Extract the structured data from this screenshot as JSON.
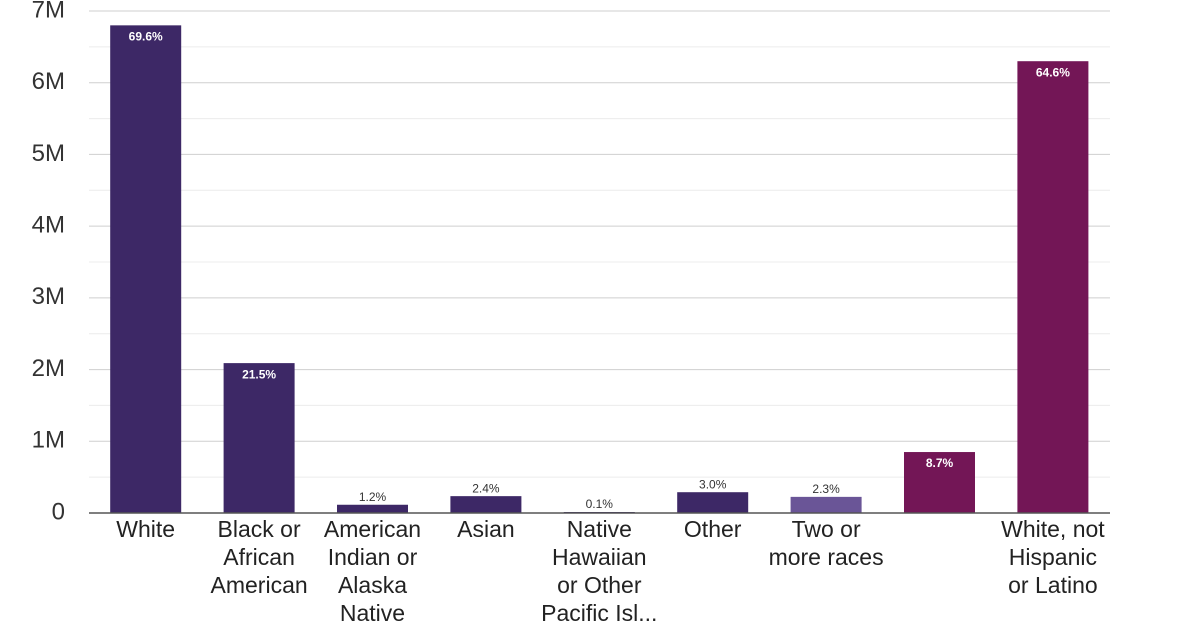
{
  "chart_data": {
    "type": "bar",
    "categories": [
      [
        "White"
      ],
      [
        "Black or",
        "African",
        "American"
      ],
      [
        "American",
        "Indian or",
        "Alaska",
        "Native"
      ],
      [
        "Asian"
      ],
      [
        "Native",
        "Hawaiian",
        "or Other",
        "Pacific Isl..."
      ],
      [
        "Other"
      ],
      [
        "Two or",
        "more races"
      ],
      [],
      [
        "White, not",
        "Hispanic",
        "or Latino"
      ]
    ],
    "values": [
      6800000,
      2090000,
      115000,
      235000,
      10000,
      290000,
      225000,
      850000,
      6300000
    ],
    "data_labels": [
      "69.6%",
      "21.5%",
      "1.2%",
      "2.4%",
      "0.1%",
      "3.0%",
      "2.3%",
      "8.7%",
      "64.6%"
    ],
    "colors": [
      "#3d2866",
      "#3d2866",
      "#3d2866",
      "#3d2866",
      "#3d2866",
      "#3d2866",
      "#6a5597",
      "#731656",
      "#731656"
    ],
    "y_ticks": [
      {
        "value": 0,
        "label": "0"
      },
      {
        "value": 1000000,
        "label": "1M"
      },
      {
        "value": 2000000,
        "label": "2M"
      },
      {
        "value": 3000000,
        "label": "3M"
      },
      {
        "value": 4000000,
        "label": "4M"
      },
      {
        "value": 5000000,
        "label": "5M"
      },
      {
        "value": 6000000,
        "label": "6M"
      },
      {
        "value": 7000000,
        "label": "7M"
      }
    ],
    "ylim": [
      0,
      7000000
    ],
    "title": "",
    "xlabel": "",
    "ylabel": "",
    "grid": true,
    "legend": "none"
  }
}
